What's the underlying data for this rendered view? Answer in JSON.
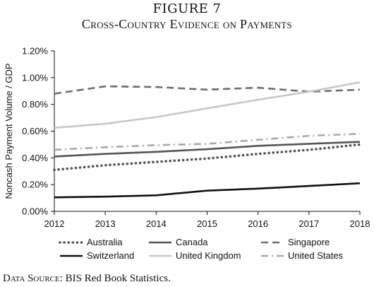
{
  "figure_label": "FIGURE 7",
  "figure_title": "Cross-Country Evidence on Payments",
  "source": {
    "prefix": "Data Source:",
    "text": "BIS Red Book Statistics."
  },
  "chart_data": {
    "type": "line",
    "title": "Cross-Country Evidence on Payments",
    "xlabel": "",
    "ylabel": "Noncash Payment Volume / GDP",
    "x": [
      2012,
      2013,
      2014,
      2015,
      2016,
      2017,
      2018
    ],
    "x_tick_labels": [
      "2012",
      "2013",
      "2014",
      "2015",
      "2016",
      "2017",
      "2018"
    ],
    "xlim": [
      2012,
      2018
    ],
    "ylim": [
      0,
      1.2
    ],
    "y_ticks": [
      0,
      0.2,
      0.4,
      0.6,
      0.8,
      1.0,
      1.2
    ],
    "y_tick_labels": [
      "0.00%",
      "0.20%",
      "0.40%",
      "0.60%",
      "0.80%",
      "1.00%",
      "1.20%"
    ],
    "grid": false,
    "legend_position": "bottom",
    "series": [
      {
        "name": "Australia",
        "color": "#555555",
        "style": "dotted",
        "values": [
          0.31,
          0.345,
          0.37,
          0.395,
          0.43,
          0.46,
          0.5
        ]
      },
      {
        "name": "Canada",
        "color": "#555555",
        "style": "solid",
        "values": [
          0.41,
          0.43,
          0.445,
          0.465,
          0.49,
          0.505,
          0.52
        ]
      },
      {
        "name": "Singapore",
        "color": "#6e6e6e",
        "style": "dashed",
        "values": [
          0.88,
          0.935,
          0.93,
          0.91,
          0.925,
          0.895,
          0.91
        ]
      },
      {
        "name": "Switzerland",
        "color": "#111111",
        "style": "solid",
        "values": [
          0.105,
          0.11,
          0.12,
          0.155,
          0.17,
          0.19,
          0.21
        ]
      },
      {
        "name": "United Kingdom",
        "color": "#c8c8c8",
        "style": "solid",
        "values": [
          0.625,
          0.655,
          0.705,
          0.77,
          0.835,
          0.895,
          0.965
        ]
      },
      {
        "name": "United States",
        "color": "#a8a8a8",
        "style": "dashdot",
        "values": [
          0.46,
          0.48,
          0.495,
          0.505,
          0.535,
          0.565,
          0.58
        ]
      }
    ]
  }
}
